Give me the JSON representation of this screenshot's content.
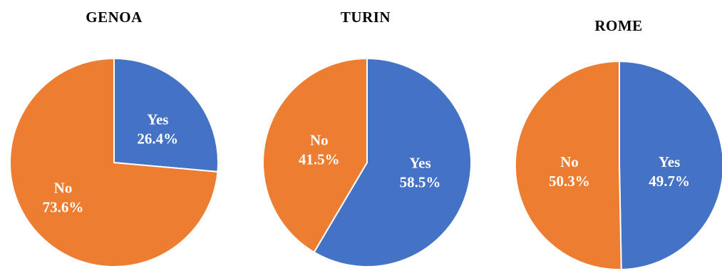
{
  "chart_data": [
    {
      "type": "pie",
      "title": "GENOA",
      "slices": [
        {
          "label": "Yes",
          "value": 26.4,
          "value_label": "26.4%",
          "color": "#4472C4"
        },
        {
          "label": "No",
          "value": 73.6,
          "value_label": "73.6%",
          "color": "#ED7D31"
        }
      ]
    },
    {
      "type": "pie",
      "title": "TURIN",
      "slices": [
        {
          "label": "Yes",
          "value": 58.5,
          "value_label": "58.5%",
          "color": "#4472C4"
        },
        {
          "label": "No",
          "value": 41.5,
          "value_label": "41.5%",
          "color": "#ED7D31"
        }
      ]
    },
    {
      "type": "pie",
      "title": "ROME",
      "slices": [
        {
          "label": "Yes",
          "value": 49.7,
          "value_label": "49.7%",
          "color": "#4472C4"
        },
        {
          "label": "No",
          "value": 50.3,
          "value_label": "50.3%",
          "color": "#ED7D31"
        }
      ]
    }
  ]
}
